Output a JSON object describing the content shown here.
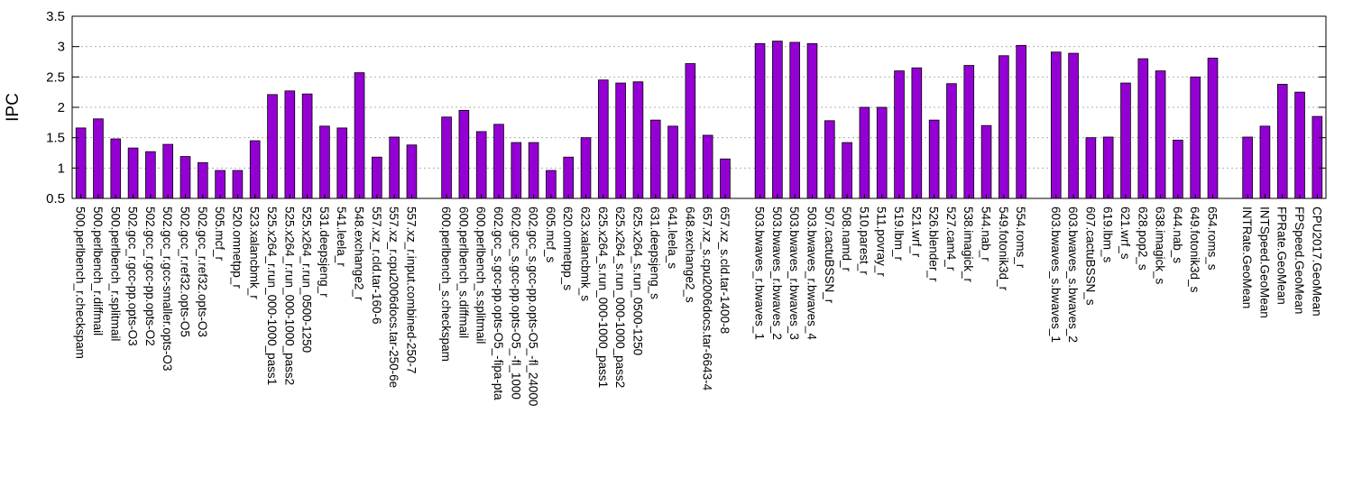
{
  "chart_data": {
    "type": "bar",
    "ylabel": "IPC",
    "ylim": [
      0.5,
      3.5
    ],
    "yticks": [
      0.5,
      1,
      1.5,
      2,
      2.5,
      3,
      3.5
    ],
    "ytick_labels": [
      "0.5",
      "1",
      "1.5",
      "2",
      "2.5",
      "3",
      "3.5"
    ],
    "grid": "horizontal-dotted",
    "bar_color": "#9400d3",
    "groups": [
      {
        "categories": [
          "500.perlbench_r.checkspam",
          "500.perlbench_r.diffmail",
          "500.perlbench_r.splitmail",
          "502.gcc_r.gcc-pp.opts-O3",
          "502.gcc_r.gcc-pp.opts-O2",
          "502.gcc_r.gcc-smaller.opts-O3",
          "502.gcc_r.ref32.opts-O5",
          "502.gcc_r.ref32.opts-O3",
          "505.mcf_r",
          "520.omnetpp_r",
          "523.xalancbmk_r",
          "525.x264_r.run_000-1000_pass1",
          "525.x264_r.run_000-1000_pass2",
          "525.x264_r.run_0500-1250",
          "531.deepsjeng_r",
          "541.leela_r",
          "548.exchange2_r",
          "557.xz_r.cld.tar-160-6",
          "557.xz_r.cpu2006docs.tar-250-6e",
          "557.xz_r.input.combined-250-7"
        ],
        "values": [
          1.66,
          1.81,
          1.48,
          1.33,
          1.27,
          1.39,
          1.19,
          1.09,
          0.96,
          0.96,
          1.45,
          2.21,
          2.27,
          2.22,
          1.69,
          1.66,
          2.57,
          1.18,
          1.51,
          1.38
        ]
      },
      {
        "categories": [
          "600.perlbench_s.checkspam",
          "600.perlbench_s.diffmail",
          "600.perlbench_s.splitmail",
          "602.gcc_s.gcc-pp.opts-O5_-fipa-pta",
          "602.gcc_s.gcc-pp.opts-O5_-fl_1000",
          "602.gcc_s.gcc-pp.opts-O5_-fl_24000",
          "605.mcf_s",
          "620.omnetpp_s",
          "623.xalancbmk_s",
          "625.x264_s.run_000-1000_pass1",
          "625.x264_s.run_000-1000_pass2",
          "625.x264_s.run_0500-1250",
          "631.deepsjeng_s",
          "641.leela_s",
          "648.exchange2_s",
          "657.xz_s.cpu2006docs.tar-6643-4",
          "657.xz_s.cld.tar-1400-8"
        ],
        "values": [
          1.84,
          1.95,
          1.6,
          1.72,
          1.42,
          1.42,
          0.96,
          1.18,
          1.5,
          2.45,
          2.4,
          2.42,
          1.79,
          1.69,
          2.72,
          1.54,
          1.15
        ]
      },
      {
        "categories": [
          "503.bwaves_r.bwaves_1",
          "503.bwaves_r.bwaves_2",
          "503.bwaves_r.bwaves_3",
          "503.bwaves_r.bwaves_4",
          "507.cactuBSSN_r",
          "508.namd_r",
          "510.parest_r",
          "511.povray_r",
          "519.lbm_r",
          "521.wrf_r",
          "526.blender_r",
          "527.cam4_r",
          "538.imagick_r",
          "544.nab_r",
          "549.fotonik3d_r",
          "554.roms_r"
        ],
        "values": [
          3.05,
          3.09,
          3.07,
          3.05,
          1.78,
          1.42,
          2.0,
          2.0,
          2.6,
          2.65,
          1.79,
          2.39,
          2.69,
          1.7,
          2.85,
          3.02
        ]
      },
      {
        "categories": [
          "603.bwaves_s.bwaves_1",
          "603.bwaves_s.bwaves_2",
          "607.cactuBSSN_s",
          "619.lbm_s",
          "621.wrf_s",
          "628.pop2_s",
          "638.imagick_s",
          "644.nab_s",
          "649.fotonik3d_s",
          "654.roms_s"
        ],
        "values": [
          2.91,
          2.89,
          1.5,
          1.51,
          2.4,
          2.8,
          2.6,
          1.46,
          2.5,
          2.81
        ]
      },
      {
        "categories": [
          "INTRate.GeoMean",
          "INTSpeed.GeoMean",
          "FPRate.GeoMean",
          "FPSpeed.GeoMean",
          "CPU2017.GeoMean"
        ],
        "values": [
          1.51,
          1.69,
          2.38,
          2.25,
          1.85
        ]
      }
    ]
  }
}
